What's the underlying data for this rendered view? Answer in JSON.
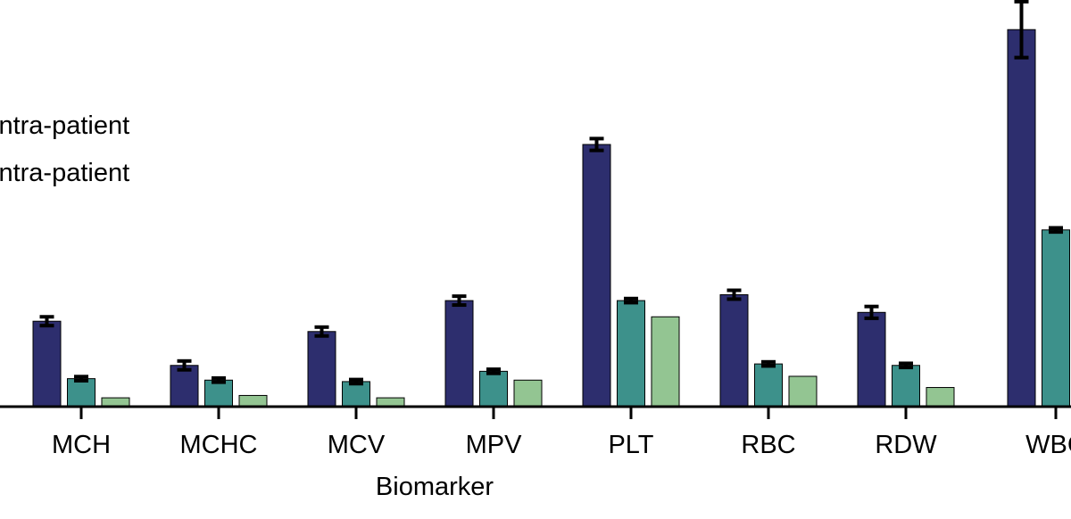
{
  "chart_data": {
    "type": "bar",
    "xlabel": "Biomarker",
    "ylabel": "",
    "categories": [
      "MCH",
      "MCHC",
      "MCV",
      "MPV",
      "PLT",
      "RBC",
      "RDW",
      "WBC"
    ],
    "ylim": [
      0,
      1.32
    ],
    "legend": {
      "placement": "top-left",
      "entries": [
        "intra-patient",
        "intra-patient"
      ]
    },
    "colors": [
      "#2d2e6e",
      "#3d918b",
      "#93c592"
    ],
    "series": [
      {
        "values": [
          0.29,
          0.14,
          0.255,
          0.36,
          0.89,
          0.38,
          0.32,
          1.28
        ],
        "errors": [
          0.015,
          0.015,
          0.015,
          0.015,
          0.02,
          0.015,
          0.02,
          0.095
        ]
      },
      {
        "name": "intra-patient",
        "values": [
          0.095,
          0.09,
          0.085,
          0.12,
          0.36,
          0.145,
          0.14,
          0.6
        ],
        "errors": [
          0.007,
          0.007,
          0.007,
          0.007,
          0.007,
          0.007,
          0.007,
          0.007
        ]
      },
      {
        "name": "intra-patient",
        "values": [
          0.03,
          0.038,
          0.03,
          0.09,
          0.305,
          0.103,
          0.065,
          null
        ],
        "errors": [
          0,
          0,
          0,
          0,
          0,
          0,
          0,
          0
        ]
      }
    ]
  }
}
